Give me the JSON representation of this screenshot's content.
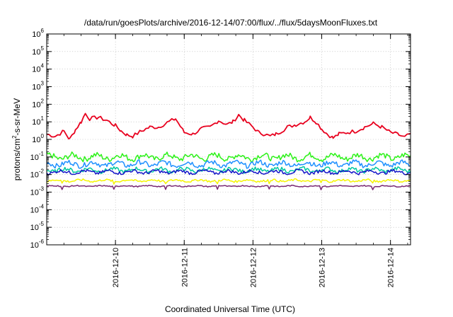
{
  "chart_data": {
    "type": "line",
    "title": "/data/run/goesPlots/archive/2016-12-14/07:00/flux/../flux/5daysMoonFluxes.txt",
    "xlabel": "Coordinated Universal Time (UTC)",
    "ylabel": {
      "base": "protons/cm",
      "sup": "2",
      "rest": "-s-sr-MeV"
    },
    "scale_y": "log",
    "ylim": [
      1e-06,
      1000000.0
    ],
    "xlim": [
      "2016-12-09T00:00",
      "2016-12-14T07:00"
    ],
    "grid": true,
    "legend": "none",
    "yticks": [
      {
        "base": "10",
        "exp": "-6"
      },
      {
        "base": "10",
        "exp": "-5"
      },
      {
        "base": "10",
        "exp": "-4"
      },
      {
        "base": "10",
        "exp": "-3"
      },
      {
        "base": "10",
        "exp": "-2"
      },
      {
        "base": "10",
        "exp": "-1"
      },
      {
        "base": "10",
        "exp": "0"
      },
      {
        "base": "10",
        "exp": "1"
      },
      {
        "base": "10",
        "exp": "2"
      },
      {
        "base": "10",
        "exp": "3"
      },
      {
        "base": "10",
        "exp": "4"
      },
      {
        "base": "10",
        "exp": "5"
      },
      {
        "base": "10",
        "exp": "6"
      }
    ],
    "xticks": [
      "2016-12-10",
      "2016-12-11",
      "2016-12-12",
      "2016-12-13",
      "2016-12-14"
    ],
    "series": [
      {
        "color": "#e8001e",
        "values": [
          [
            "2016-12-09T00:00",
            2.0
          ],
          [
            "2016-12-09T03:00",
            1.5
          ],
          [
            "2016-12-09T06:00",
            3.0
          ],
          [
            "2016-12-09T08:00",
            1.0
          ],
          [
            "2016-12-09T10:00",
            3.5
          ],
          [
            "2016-12-09T12:00",
            10
          ],
          [
            "2016-12-09T13:30",
            30
          ],
          [
            "2016-12-09T15:00",
            15
          ],
          [
            "2016-12-09T18:00",
            18
          ],
          [
            "2016-12-09T21:00",
            12
          ],
          [
            "2016-12-10T00:00",
            6
          ],
          [
            "2016-12-10T02:00",
            3
          ],
          [
            "2016-12-10T04:00",
            1.8
          ],
          [
            "2016-12-10T06:00",
            1.5
          ],
          [
            "2016-12-10T09:00",
            3
          ],
          [
            "2016-12-10T12:00",
            5
          ],
          [
            "2016-12-10T15:00",
            5
          ],
          [
            "2016-12-10T18:00",
            9
          ],
          [
            "2016-12-10T21:00",
            15
          ],
          [
            "2016-12-11T00:00",
            2.5
          ],
          [
            "2016-12-11T03:00",
            2
          ],
          [
            "2016-12-11T06:00",
            4
          ],
          [
            "2016-12-11T09:00",
            5
          ],
          [
            "2016-12-11T12:00",
            12
          ],
          [
            "2016-12-11T15:00",
            7
          ],
          [
            "2016-12-11T17:00",
            10
          ],
          [
            "2016-12-11T19:00",
            25
          ],
          [
            "2016-12-11T21:00",
            12
          ],
          [
            "2016-12-12T00:00",
            5
          ],
          [
            "2016-12-12T02:00",
            2.5
          ],
          [
            "2016-12-12T04:00",
            2.0
          ],
          [
            "2016-12-12T06:00",
            1.5
          ],
          [
            "2016-12-12T08:00",
            2
          ],
          [
            "2016-12-12T10:00",
            3
          ],
          [
            "2016-12-12T12:00",
            5
          ],
          [
            "2016-12-12T15:00",
            7
          ],
          [
            "2016-12-12T18:00",
            10
          ],
          [
            "2016-12-12T20:00",
            18
          ],
          [
            "2016-12-12T22:00",
            10
          ],
          [
            "2016-12-13T00:00",
            4
          ],
          [
            "2016-12-13T02:00",
            2
          ],
          [
            "2016-12-13T04:00",
            1.2
          ],
          [
            "2016-12-13T06:00",
            2.0
          ],
          [
            "2016-12-13T09:00",
            2.5
          ],
          [
            "2016-12-13T12:00",
            3.0
          ],
          [
            "2016-12-13T15:00",
            5
          ],
          [
            "2016-12-13T18:00",
            8
          ],
          [
            "2016-12-13T21:00",
            5
          ],
          [
            "2016-12-14T00:00",
            2.5
          ],
          [
            "2016-12-14T03:00",
            1.8
          ],
          [
            "2016-12-14T05:00",
            1.3
          ],
          [
            "2016-12-14T07:00",
            2.2
          ]
        ]
      },
      {
        "color": "#2cf218",
        "level": 0.1,
        "amplitude": 0.32
      },
      {
        "color": "#1e90ff",
        "level": 0.04,
        "amplitude": 0.28
      },
      {
        "color": "#00c8a0",
        "level": 0.018,
        "amplitude": 0.22
      },
      {
        "color": "#1414c8",
        "level": 0.014,
        "amplitude": 0.18
      },
      {
        "color": "#f5f500",
        "level": 0.0045,
        "amplitude": 0.12
      },
      {
        "color": "#7a2a73",
        "level": 0.0022,
        "amplitude": 0.06
      }
    ]
  }
}
